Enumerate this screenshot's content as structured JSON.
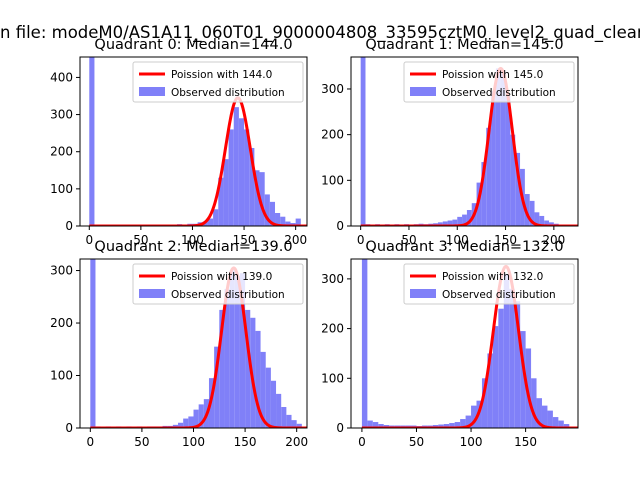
{
  "figure": {
    "suptitle": "n file: modeM0/AS1A11_060T01_9000004808_33595cztM0_level2_quad_clean"
  },
  "colors": {
    "hist": "#8080f8",
    "curve": "#ff0000",
    "axes": "#000000"
  },
  "chart_data": [
    {
      "type": "bar",
      "title": "Quadrant 0: Median=144.0",
      "legend": {
        "placement": "upper-right",
        "entries": [
          "Poission with 144.0",
          "Observed distribution"
        ]
      },
      "xlim": [
        -9,
        211
      ],
      "ylim": [
        0,
        455
      ],
      "xticks": [
        0,
        50,
        100,
        150,
        200
      ],
      "yticks": [
        0,
        100,
        200,
        300,
        400
      ],
      "bin_width": 5,
      "bins": [
        [
          0,
          455
        ],
        [
          5,
          4
        ],
        [
          10,
          2
        ],
        [
          15,
          3
        ],
        [
          20,
          2
        ],
        [
          25,
          3
        ],
        [
          30,
          2
        ],
        [
          35,
          3
        ],
        [
          40,
          2
        ],
        [
          45,
          3
        ],
        [
          50,
          2
        ],
        [
          55,
          3
        ],
        [
          60,
          3
        ],
        [
          65,
          3
        ],
        [
          70,
          2
        ],
        [
          75,
          3
        ],
        [
          80,
          3
        ],
        [
          85,
          5
        ],
        [
          90,
          4
        ],
        [
          95,
          6
        ],
        [
          100,
          6
        ],
        [
          105,
          10
        ],
        [
          110,
          12
        ],
        [
          115,
          20
        ],
        [
          120,
          45
        ],
        [
          125,
          130
        ],
        [
          130,
          180
        ],
        [
          135,
          260
        ],
        [
          140,
          320
        ],
        [
          145,
          290
        ],
        [
          150,
          260
        ],
        [
          155,
          210
        ],
        [
          160,
          150
        ],
        [
          165,
          145
        ],
        [
          170,
          85
        ],
        [
          175,
          65
        ],
        [
          180,
          35
        ],
        [
          185,
          25
        ],
        [
          190,
          12
        ],
        [
          195,
          8
        ],
        [
          200,
          20
        ]
      ],
      "poisson": {
        "mean": 144.0,
        "peak": 345
      }
    },
    {
      "type": "bar",
      "title": "Quadrant 1: Median=145.0",
      "legend": {
        "placement": "upper-right",
        "entries": [
          "Poission with 145.0",
          "Observed distribution"
        ]
      },
      "xlim": [
        -10,
        225
      ],
      "ylim": [
        0,
        370
      ],
      "xticks": [
        0,
        50,
        100,
        150,
        200
      ],
      "yticks": [
        0,
        100,
        200,
        300
      ],
      "bin_width": 5,
      "bins": [
        [
          0,
          370
        ],
        [
          5,
          4
        ],
        [
          10,
          3
        ],
        [
          15,
          4
        ],
        [
          20,
          3
        ],
        [
          25,
          4
        ],
        [
          30,
          3
        ],
        [
          35,
          4
        ],
        [
          40,
          3
        ],
        [
          45,
          4
        ],
        [
          50,
          3
        ],
        [
          55,
          4
        ],
        [
          60,
          5
        ],
        [
          65,
          4
        ],
        [
          70,
          5
        ],
        [
          75,
          6
        ],
        [
          80,
          8
        ],
        [
          85,
          10
        ],
        [
          90,
          12
        ],
        [
          95,
          14
        ],
        [
          100,
          20
        ],
        [
          105,
          25
        ],
        [
          110,
          35
        ],
        [
          115,
          50
        ],
        [
          120,
          95
        ],
        [
          125,
          140
        ],
        [
          130,
          215
        ],
        [
          135,
          295
        ],
        [
          140,
          345
        ],
        [
          145,
          340
        ],
        [
          150,
          285
        ],
        [
          155,
          200
        ],
        [
          160,
          160
        ],
        [
          165,
          125
        ],
        [
          170,
          70
        ],
        [
          175,
          55
        ],
        [
          180,
          30
        ],
        [
          185,
          22
        ],
        [
          190,
          12
        ],
        [
          195,
          8
        ],
        [
          200,
          5
        ]
      ],
      "poisson": {
        "mean": 145.0,
        "peak": 345
      }
    },
    {
      "type": "bar",
      "title": "Quadrant 2: Median=139.0",
      "legend": {
        "placement": "upper-right",
        "entries": [
          "Poission with 139.0",
          "Observed distribution"
        ]
      },
      "xlim": [
        -10,
        210
      ],
      "ylim": [
        0,
        322
      ],
      "xticks": [
        0,
        50,
        100,
        150,
        200
      ],
      "yticks": [
        0,
        100,
        200,
        300
      ],
      "bin_width": 5,
      "bins": [
        [
          0,
          322
        ],
        [
          5,
          3
        ],
        [
          10,
          2
        ],
        [
          15,
          3
        ],
        [
          20,
          2
        ],
        [
          25,
          3
        ],
        [
          30,
          2
        ],
        [
          35,
          3
        ],
        [
          40,
          2
        ],
        [
          45,
          3
        ],
        [
          50,
          2
        ],
        [
          55,
          3
        ],
        [
          60,
          3
        ],
        [
          65,
          3
        ],
        [
          70,
          4
        ],
        [
          75,
          4
        ],
        [
          80,
          6
        ],
        [
          85,
          10
        ],
        [
          90,
          18
        ],
        [
          95,
          22
        ],
        [
          100,
          35
        ],
        [
          105,
          45
        ],
        [
          110,
          55
        ],
        [
          115,
          95
        ],
        [
          120,
          155
        ],
        [
          125,
          225
        ],
        [
          130,
          265
        ],
        [
          135,
          300
        ],
        [
          140,
          290
        ],
        [
          145,
          295
        ],
        [
          150,
          225
        ],
        [
          155,
          210
        ],
        [
          160,
          185
        ],
        [
          165,
          145
        ],
        [
          170,
          115
        ],
        [
          175,
          90
        ],
        [
          180,
          65
        ],
        [
          185,
          40
        ],
        [
          190,
          25
        ],
        [
          195,
          15
        ],
        [
          200,
          8
        ]
      ],
      "poisson": {
        "mean": 139.0,
        "peak": 305
      }
    },
    {
      "type": "bar",
      "title": "Quadrant 3: Median=132.0",
      "legend": {
        "placement": "upper-right",
        "entries": [
          "Poission with 132.0",
          "Observed distribution"
        ]
      },
      "xlim": [
        -10,
        198
      ],
      "ylim": [
        0,
        340
      ],
      "xticks": [
        0,
        50,
        100,
        150
      ],
      "yticks": [
        0,
        100,
        200,
        300
      ],
      "bin_width": 5,
      "bins": [
        [
          0,
          340
        ],
        [
          5,
          15
        ],
        [
          10,
          12
        ],
        [
          15,
          8
        ],
        [
          20,
          6
        ],
        [
          25,
          5
        ],
        [
          30,
          5
        ],
        [
          35,
          5
        ],
        [
          40,
          5
        ],
        [
          45,
          5
        ],
        [
          50,
          4
        ],
        [
          55,
          5
        ],
        [
          60,
          5
        ],
        [
          65,
          6
        ],
        [
          70,
          7
        ],
        [
          75,
          8
        ],
        [
          80,
          10
        ],
        [
          85,
          12
        ],
        [
          90,
          18
        ],
        [
          95,
          25
        ],
        [
          100,
          45
        ],
        [
          105,
          55
        ],
        [
          110,
          100
        ],
        [
          115,
          150
        ],
        [
          120,
          205
        ],
        [
          125,
          240
        ],
        [
          130,
          310
        ],
        [
          135,
          280
        ],
        [
          140,
          255
        ],
        [
          145,
          195
        ],
        [
          150,
          160
        ],
        [
          155,
          100
        ],
        [
          160,
          60
        ],
        [
          165,
          45
        ],
        [
          170,
          35
        ],
        [
          175,
          22
        ],
        [
          180,
          15
        ],
        [
          185,
          8
        ]
      ],
      "poisson": {
        "mean": 132.0,
        "peak": 325
      }
    }
  ]
}
